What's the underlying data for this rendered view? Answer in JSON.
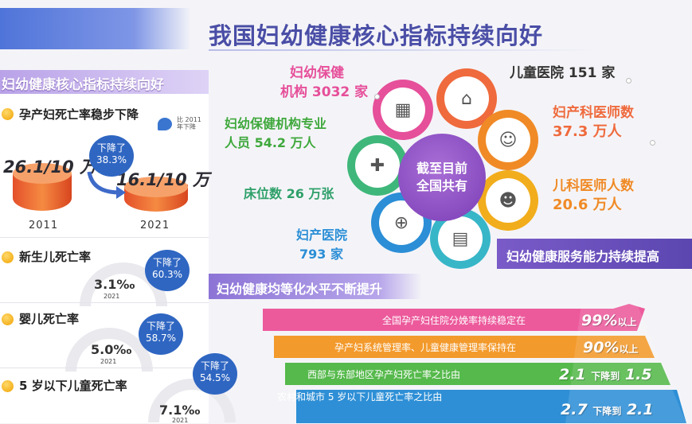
{
  "header": {
    "title": "我国妇幼健康核心指标持续向好"
  },
  "left_panel": {
    "section_title": "妇幼健康核心指标持续向好",
    "maternal": {
      "heading": "孕产妇死亡率稳步下降",
      "note": "比 2011 年下降",
      "value_2011": "26.1/10 万",
      "value_2021": "16.1/10 万",
      "year_2011": "2011",
      "year_2021": "2021",
      "drop_label": "下降了",
      "drop_pct": "38.3%"
    },
    "indicators": [
      {
        "heading": "新生儿死亡率",
        "rate": "3.1‰",
        "year": "2021",
        "drop_label": "下降了",
        "drop_pct": "60.3%"
      },
      {
        "heading": "婴儿死亡率",
        "rate": "5.0‰",
        "year": "2021",
        "drop_label": "下降了",
        "drop_pct": "58.7%"
      },
      {
        "heading": "5 岁以下儿童死亡率",
        "rate": "7.1‰",
        "year": "2021",
        "drop_label": "下降了",
        "drop_pct": "54.5%"
      }
    ]
  },
  "center": {
    "line1": "截至目前",
    "line2": "全国共有"
  },
  "petals": [
    {
      "icon": "building-icon",
      "line1": "妇幼保健",
      "line2": "机构 3032 家",
      "color": "#e64f9a"
    },
    {
      "icon": "hospital-icon",
      "line1": "儿童医院 151 家",
      "line2": "",
      "color": "#ef6a3d"
    },
    {
      "icon": "nurse-icon",
      "line1": "妇产科医师数",
      "line2": "37.3 万人",
      "color": "#f08a26"
    },
    {
      "icon": "doctor-icon",
      "line1": "儿科医师人数",
      "line2": "20.6 万人",
      "color": "#f2ad1c"
    },
    {
      "icon": "clinic-icon",
      "line1": "",
      "line2": "",
      "color": "#37b6c8"
    },
    {
      "icon": "bed-icon",
      "line1": "妇产医院",
      "line2": "793 家",
      "color": "#2b8ed6"
    },
    {
      "icon": "medic-icon",
      "line1": "床位数 26 万张",
      "line2": "",
      "color": "#3fb77a"
    },
    {
      "icon": "staff-icon",
      "line1": "妇幼保健机构专业",
      "line2": "人员 54.2 万人",
      "color": "#7cc23f"
    }
  ],
  "capacity_title": "妇幼健康服务能力持续提高",
  "equal_title": "妇幼健康均等化水平不断提升",
  "pyramid": [
    {
      "text": "全国孕产妇住院分娩率持续稳定在",
      "value": "99%",
      "suffix": "以上",
      "color": "#ec5a9c"
    },
    {
      "text": "孕产妇系统管理率、儿童健康管理率保持在",
      "value": "90%",
      "suffix": "以上",
      "color": "#f39a2c"
    },
    {
      "text": "西部与东部地区孕产妇死亡率之比由",
      "value": "2.1",
      "mid": "下降到",
      "value2": "1.5",
      "color": "#55b94b"
    },
    {
      "text": "农村和城市 5 岁以下儿童死亡率之比由",
      "value": "2.7",
      "mid": "下降到",
      "value2": "2.1",
      "color": "#2e8fd6"
    }
  ]
}
